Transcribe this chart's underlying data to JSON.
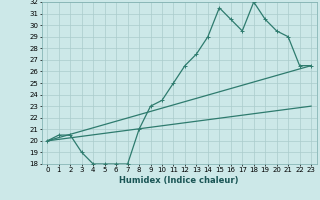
{
  "title": "",
  "xlabel": "Humidex (Indice chaleur)",
  "background_color": "#cce8e8",
  "grid_color": "#aacccc",
  "line_color": "#2e7b6e",
  "xlim": [
    -0.5,
    23.5
  ],
  "ylim": [
    18,
    32
  ],
  "xticks": [
    0,
    1,
    2,
    3,
    4,
    5,
    6,
    7,
    8,
    9,
    10,
    11,
    12,
    13,
    14,
    15,
    16,
    17,
    18,
    19,
    20,
    21,
    22,
    23
  ],
  "yticks": [
    18,
    19,
    20,
    21,
    22,
    23,
    24,
    25,
    26,
    27,
    28,
    29,
    30,
    31,
    32
  ],
  "line1_x": [
    0,
    1,
    2,
    3,
    4,
    5,
    6,
    7,
    8,
    9,
    10,
    11,
    12,
    13,
    14,
    15,
    16,
    17,
    18,
    19,
    20,
    21,
    22,
    23
  ],
  "line1_y": [
    20.0,
    20.5,
    20.5,
    19.0,
    18.0,
    18.0,
    18.0,
    18.0,
    21.0,
    23.0,
    23.5,
    25.0,
    26.5,
    27.5,
    29.0,
    31.5,
    30.5,
    29.5,
    32.0,
    30.5,
    29.5,
    29.0,
    26.5,
    26.5
  ],
  "line2_x": [
    0,
    23
  ],
  "line2_y": [
    20.0,
    26.5
  ],
  "line3_x": [
    0,
    23
  ],
  "line3_y": [
    20.0,
    23.0
  ],
  "marker_style": "+",
  "marker_size": 3,
  "linewidth": 0.9,
  "tick_labelsize": 5,
  "xlabel_fontsize": 6,
  "xlabel_color": "#1a5555"
}
